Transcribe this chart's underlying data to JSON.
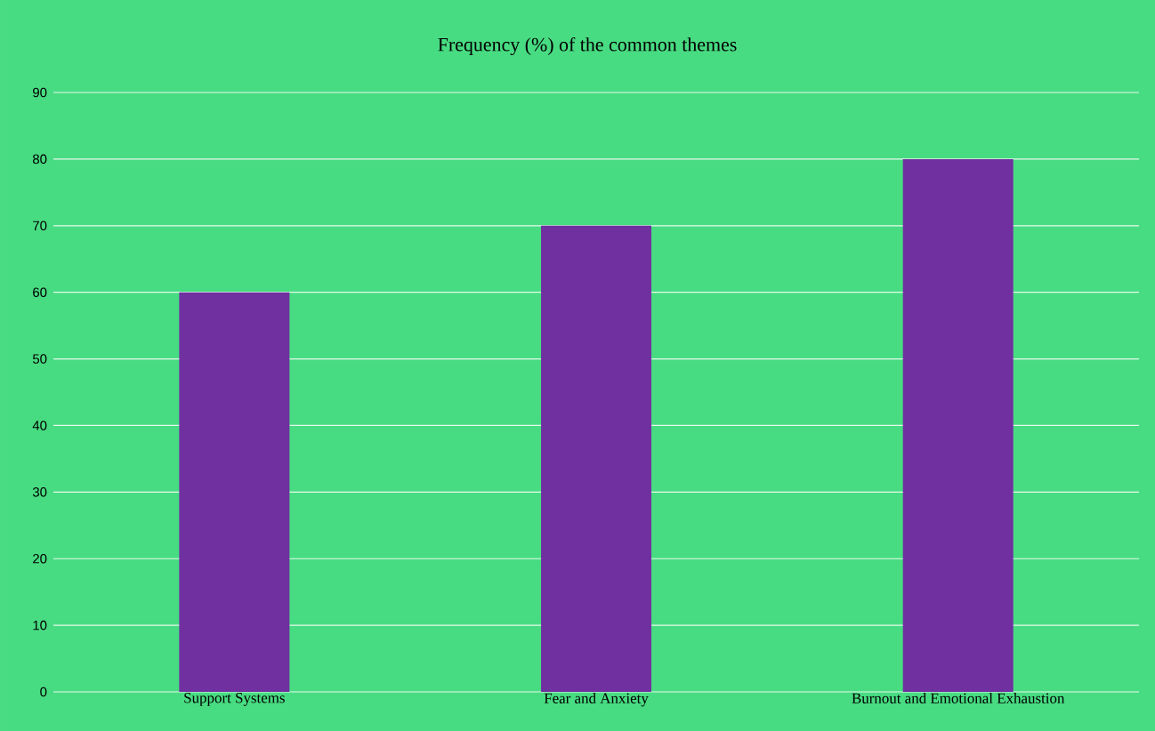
{
  "chart_data": {
    "type": "bar",
    "title": "Frequency (%) of the common themes",
    "categories": [
      "Support Systems",
      "Fear and Anxiety",
      "Burnout and Emotional Exhaustion"
    ],
    "values": [
      60,
      70,
      80
    ],
    "color": "#7030a0",
    "ylim": [
      0,
      90
    ],
    "yticks": [
      0,
      10,
      20,
      30,
      40,
      50,
      60,
      70,
      80,
      90
    ],
    "grid": "y"
  }
}
